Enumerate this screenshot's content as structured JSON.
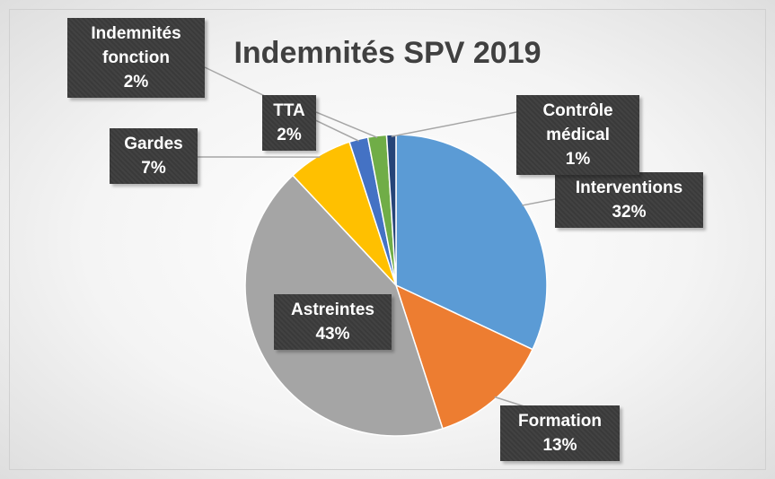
{
  "chart_data": {
    "type": "pie",
    "title": "Indemnités SPV 2019",
    "categories": [
      "Interventions",
      "Formation",
      "Astreintes",
      "Gardes",
      "Indemnités fonction",
      "TTA",
      "Contrôle médical"
    ],
    "values": [
      32,
      13,
      43,
      7,
      2,
      2,
      1
    ],
    "value_labels": [
      "32%",
      "13%",
      "43%",
      "7%",
      "2%",
      "2%",
      "1%"
    ],
    "colors": [
      "#5b9bd5",
      "#ed7d31",
      "#a5a5a5",
      "#ffc000",
      "#4472c4",
      "#70ad47",
      "#264478"
    ]
  }
}
